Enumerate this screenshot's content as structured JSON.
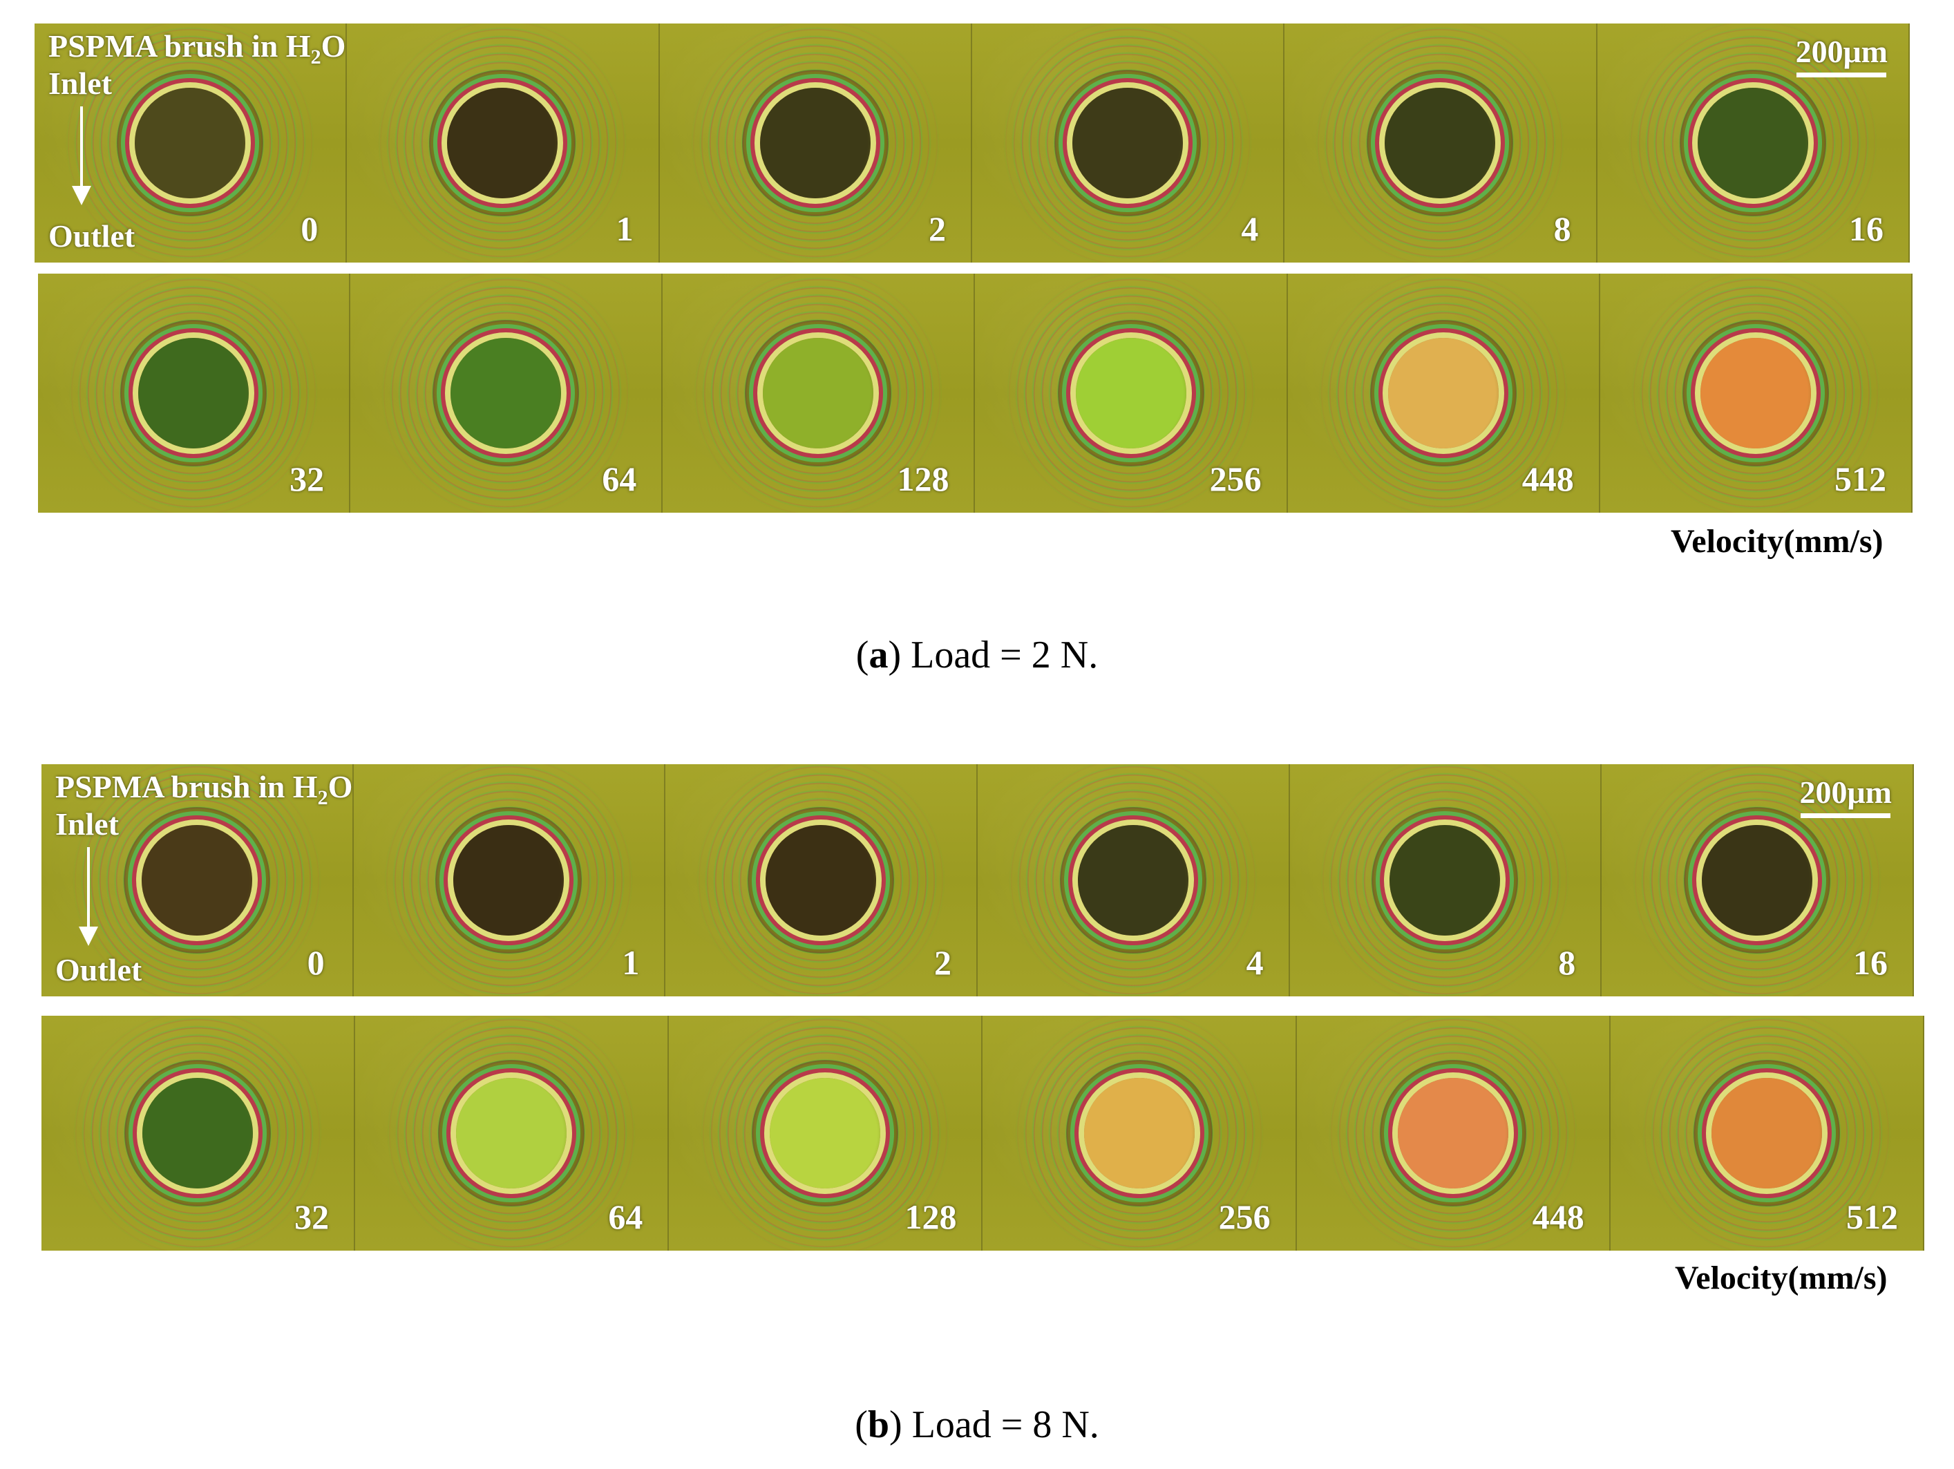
{
  "panel_a": {
    "title_prefix": "PSPMA brush in H",
    "title_sub": "2",
    "title_suffix": "O",
    "inlet": "Inlet",
    "outlet": "Outlet",
    "scale_bar": "200μm",
    "row1": [
      "0",
      "1",
      "2",
      "4",
      "8",
      "16"
    ],
    "row2": [
      "32",
      "64",
      "128",
      "256",
      "448",
      "512"
    ],
    "contact_colors_row1": [
      "#4e4a1c",
      "#3c3215",
      "#3d3a17",
      "#3e3b18",
      "#3a4018",
      "#3e5a1c"
    ],
    "contact_colors_row2": [
      "#3f6a1e",
      "#4a7f22",
      "#8fb02a",
      "#9fcf35",
      "#e0b050",
      "#e48a3a"
    ],
    "velocity_label": "Velocity(mm/s)",
    "caption_letter": "a",
    "caption_text": " Load = 2 N."
  },
  "panel_b": {
    "title_prefix": "PSPMA brush in H",
    "title_sub": "2",
    "title_suffix": "O",
    "inlet": "Inlet",
    "outlet": "Outlet",
    "scale_bar": "200μm",
    "row1": [
      "0",
      "1",
      "2",
      "4",
      "8",
      "16"
    ],
    "row2": [
      "32",
      "64",
      "128",
      "256",
      "448",
      "512"
    ],
    "contact_colors_row1": [
      "#4a3a18",
      "#3a2e14",
      "#3c3014",
      "#3a3a18",
      "#3a4518",
      "#3a3516"
    ],
    "contact_colors_row2": [
      "#3e6a1e",
      "#b0d040",
      "#b8d440",
      "#e0b04a",
      "#e4894a",
      "#e0883a"
    ],
    "velocity_label": "Velocity(mm/s)",
    "caption_letter": "b",
    "caption_text": " Load = 8 N."
  }
}
